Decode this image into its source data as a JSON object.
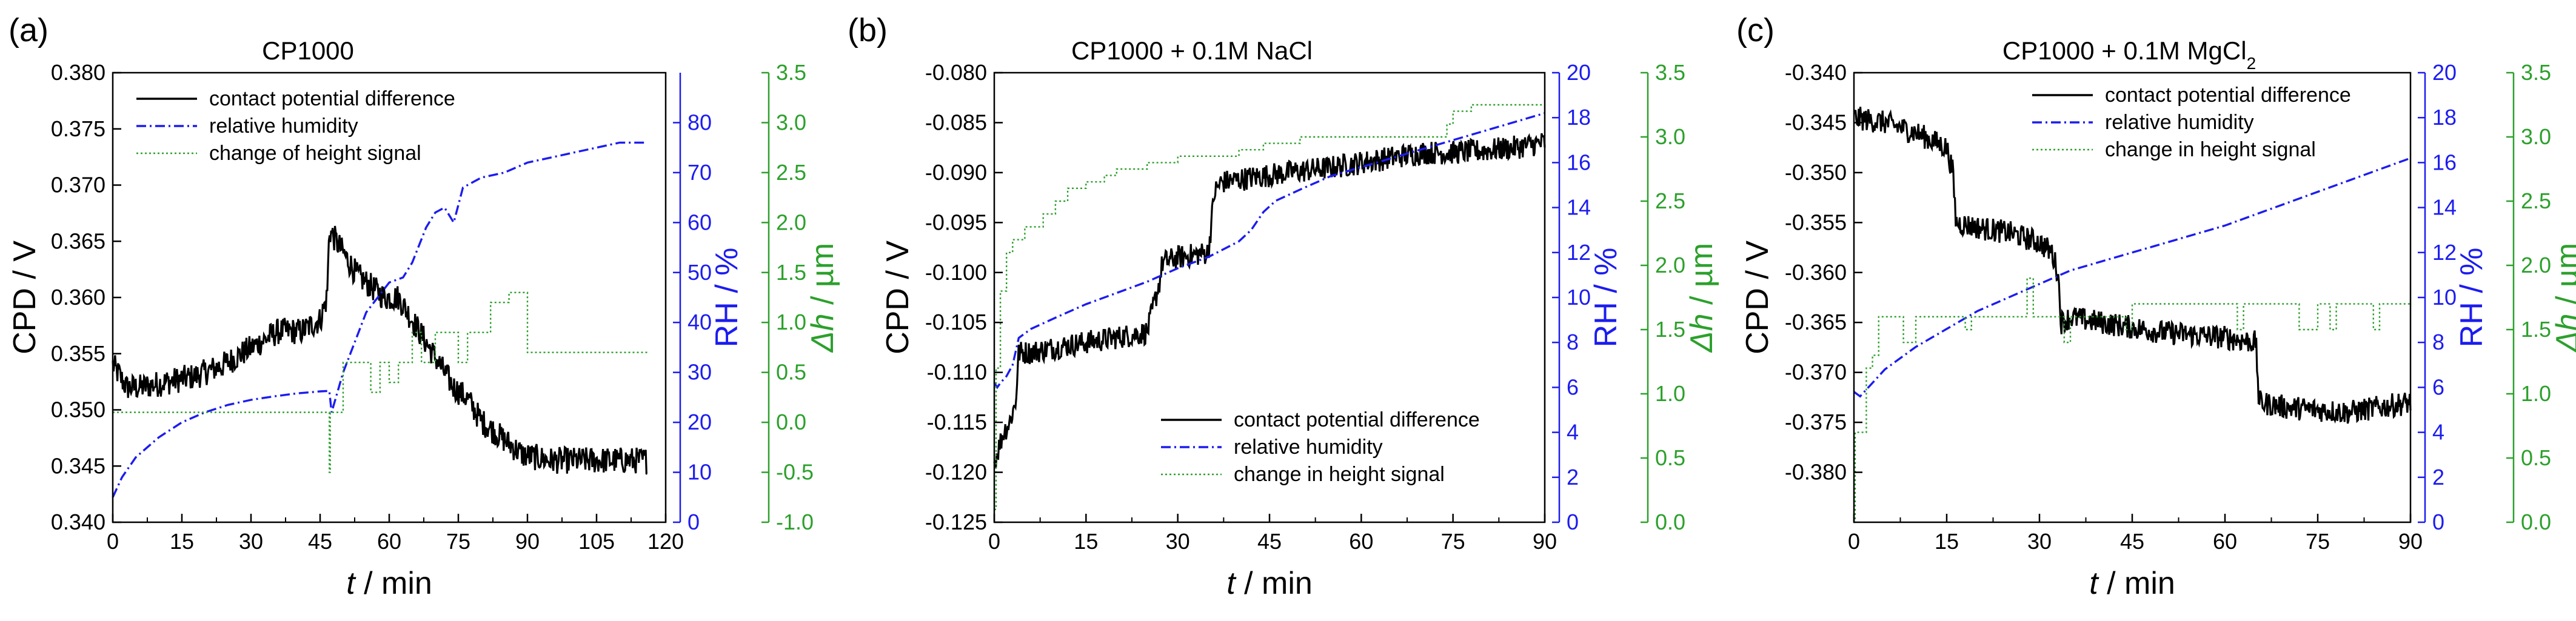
{
  "figure": {
    "colors": {
      "cpd": "#000000",
      "rh": "#1c1cf0",
      "dh": "#2ca02c"
    },
    "panels": [
      {
        "tag": "(a)",
        "title": "CP1000",
        "title_sub": "",
        "title_tail": "",
        "legend": {
          "position": "top-left",
          "cpd": "contact potential difference",
          "rh": "relative humidity",
          "dh": "change of height signal"
        }
      },
      {
        "tag": "(b)",
        "title": "CP1000 + 0.1M NaCl",
        "title_sub": "",
        "title_tail": "",
        "legend": {
          "position": "bottom-right",
          "cpd": "contact potential difference",
          "rh": "relative humidity",
          "dh": "change in height signal"
        }
      },
      {
        "tag": "(c)",
        "title": "CP1000 + 0.1M MgCl",
        "title_sub": "2",
        "title_tail": "",
        "legend": {
          "position": "top-right",
          "cpd": "contact potential difference",
          "rh": "relative humidity",
          "dh": "change in height signal"
        }
      }
    ]
  },
  "chart_data": [
    {
      "type": "line",
      "title": "CP1000",
      "xlabel_var": "t",
      "xlabel_unit": " / min",
      "y1label": "CPD / V",
      "y2label": "RH / %",
      "y3label_var": "Δh",
      "y3label_unit": " / µm",
      "xlim": [
        0,
        120
      ],
      "xticks": [
        "0",
        "15",
        "30",
        "45",
        "60",
        "75",
        "90",
        "105",
        "120"
      ],
      "y1lim": [
        0.34,
        0.38
      ],
      "y1ticks": [
        "0.340",
        "0.345",
        "0.350",
        "0.355",
        "0.360",
        "0.365",
        "0.370",
        "0.375",
        "0.380"
      ],
      "y2lim": [
        0,
        90
      ],
      "y2ticks": [
        "0",
        "10",
        "20",
        "30",
        "40",
        "50",
        "60",
        "70",
        "80"
      ],
      "y3lim": [
        -1.0,
        3.5
      ],
      "y3ticks": [
        "-1.0",
        "-0.5",
        "0.0",
        "0.5",
        "1.0",
        "1.5",
        "2.0",
        "2.5",
        "3.0",
        "3.5"
      ],
      "series": [
        {
          "name": "contact potential difference",
          "axis": "y1",
          "noise": 0.0012,
          "x": [
            0,
            3,
            6,
            12,
            18,
            24,
            30,
            36,
            41,
            45,
            46.5,
            47,
            48.5,
            50,
            53,
            56,
            59,
            62,
            65,
            68,
            71,
            74,
            77,
            80,
            83,
            86,
            89,
            95,
            100,
            105,
            110,
            116
          ],
          "y": [
            0.354,
            0.352,
            0.352,
            0.3525,
            0.353,
            0.354,
            0.3555,
            0.357,
            0.357,
            0.358,
            0.36,
            0.366,
            0.365,
            0.364,
            0.362,
            0.361,
            0.36,
            0.36,
            0.358,
            0.356,
            0.354,
            0.352,
            0.351,
            0.349,
            0.348,
            0.347,
            0.346,
            0.3455,
            0.3455,
            0.3455,
            0.3455,
            0.3455
          ]
        },
        {
          "name": "relative humidity",
          "axis": "y2",
          "x": [
            0,
            2,
            5,
            10,
            15,
            20,
            25,
            30,
            35,
            40,
            45,
            47,
            47.5,
            50,
            55,
            60,
            63,
            65,
            68,
            70,
            72,
            74,
            76,
            80,
            85,
            90,
            95,
            100,
            105,
            110,
            116
          ],
          "y": [
            5,
            9,
            13,
            17,
            20,
            22,
            23.5,
            24.5,
            25.2,
            25.8,
            26.2,
            26.3,
            22,
            30,
            42,
            48,
            49,
            52,
            59,
            62,
            63,
            60,
            67,
            69,
            70,
            72,
            73,
            74,
            75,
            76,
            76
          ]
        },
        {
          "name": "change of height signal",
          "axis": "y3",
          "step": true,
          "x": [
            0,
            2,
            5,
            10,
            20,
            30,
            40,
            47,
            47.2,
            48,
            50,
            53,
            56,
            58,
            60,
            62,
            64,
            65,
            67,
            70,
            72,
            75,
            77,
            80,
            82,
            85,
            86,
            90,
            95,
            100,
            105,
            110,
            115,
            116
          ],
          "y": [
            0.1,
            0.1,
            0.1,
            0.1,
            0.1,
            0.1,
            0.1,
            -0.5,
            0.1,
            0.1,
            0.6,
            0.6,
            0.3,
            0.6,
            0.4,
            0.6,
            0.6,
            0.9,
            0.6,
            0.9,
            0.9,
            0.6,
            0.9,
            0.9,
            1.2,
            1.2,
            1.3,
            0.7,
            0.7,
            0.7,
            0.7,
            0.7,
            0.7,
            0.7
          ]
        }
      ]
    },
    {
      "type": "line",
      "title": "CP1000 + 0.1M NaCl",
      "xlabel_var": "t",
      "xlabel_unit": " / min",
      "y1label": "CPD / V",
      "y2label": "RH / %",
      "y3label_var": "Δh",
      "y3label_unit": " / µm",
      "xlim": [
        0,
        90
      ],
      "xticks": [
        "0",
        "15",
        "30",
        "45",
        "60",
        "75",
        "90"
      ],
      "y1lim": [
        -0.125,
        -0.08
      ],
      "y1ticks": [
        "-0.125",
        "-0.120",
        "-0.115",
        "-0.110",
        "-0.105",
        "-0.100",
        "-0.095",
        "-0.090",
        "-0.085",
        "-0.080"
      ],
      "y2lim": [
        0,
        20
      ],
      "y2ticks": [
        "0",
        "2",
        "4",
        "6",
        "8",
        "10",
        "12",
        "14",
        "16",
        "18",
        "20"
      ],
      "y3lim": [
        0.0,
        3.5
      ],
      "y3ticks": [
        "0.0",
        "0.5",
        "1.0",
        "1.5",
        "2.0",
        "2.5",
        "3.0",
        "3.5"
      ],
      "series": [
        {
          "name": "contact potential difference",
          "axis": "y1",
          "noise": 0.0012,
          "x": [
            0,
            0.5,
            1.5,
            2.5,
            3.5,
            4,
            6,
            10,
            15,
            20,
            25,
            27,
            27.5,
            30,
            35,
            36,
            37,
            42,
            48,
            55,
            60,
            65,
            70,
            75,
            80,
            85,
            90
          ],
          "y": [
            -0.119,
            -0.118,
            -0.116,
            -0.115,
            -0.113,
            -0.108,
            -0.108,
            -0.1075,
            -0.107,
            -0.1065,
            -0.106,
            -0.101,
            -0.099,
            -0.0985,
            -0.098,
            -0.092,
            -0.091,
            -0.0905,
            -0.09,
            -0.0895,
            -0.089,
            -0.0885,
            -0.088,
            -0.088,
            -0.0878,
            -0.0875,
            -0.087
          ]
        },
        {
          "name": "relative humidity",
          "axis": "y2",
          "x": [
            0,
            0.5,
            1,
            2,
            3,
            4,
            6,
            10,
            15,
            20,
            25,
            30,
            35,
            40,
            42,
            44,
            46,
            50,
            55,
            60,
            65,
            70,
            75,
            80,
            85,
            90
          ],
          "y": [
            6.2,
            6,
            6.2,
            6.5,
            7,
            8.2,
            8.6,
            9.1,
            9.7,
            10.2,
            10.7,
            11.3,
            11.8,
            12.5,
            13,
            13.8,
            14.3,
            14.8,
            15.4,
            15.8,
            16.2,
            16.6,
            17,
            17.4,
            17.8,
            18.2
          ]
        },
        {
          "name": "change in height signal",
          "axis": "y3",
          "step": true,
          "x": [
            0,
            0.3,
            1,
            2,
            3,
            5,
            8,
            10,
            12,
            15,
            18,
            20,
            25,
            30,
            40,
            44,
            46,
            50,
            60,
            70,
            74,
            75,
            78,
            80,
            90
          ],
          "y": [
            0.1,
            1.2,
            1.8,
            2.1,
            2.2,
            2.3,
            2.4,
            2.5,
            2.6,
            2.65,
            2.7,
            2.75,
            2.8,
            2.85,
            2.9,
            2.95,
            2.95,
            3.0,
            3.0,
            3.0,
            3.1,
            3.2,
            3.25,
            3.25,
            3.25
          ]
        }
      ]
    },
    {
      "type": "line",
      "title": "CP1000 + 0.1M MgCl2",
      "xlabel_var": "t",
      "xlabel_unit": " / min",
      "y1label": "CPD / V",
      "y2label": "RH / %",
      "y3label_var": "Δh",
      "y3label_unit": " / µm",
      "xlim": [
        0,
        90
      ],
      "xticks": [
        "0",
        "15",
        "30",
        "45",
        "60",
        "75",
        "90"
      ],
      "y1lim": [
        -0.385,
        -0.34
      ],
      "y1ticks": [
        "-0.380",
        "-0.375",
        "-0.370",
        "-0.365",
        "-0.360",
        "-0.355",
        "-0.350",
        "-0.345",
        "-0.340"
      ],
      "y2lim": [
        0,
        20
      ],
      "y2ticks": [
        "0",
        "2",
        "4",
        "6",
        "8",
        "10",
        "12",
        "14",
        "16",
        "18",
        "20"
      ],
      "y3lim": [
        0.0,
        3.5
      ],
      "y3ticks": [
        "0.0",
        "0.5",
        "1.0",
        "1.5",
        "2.0",
        "2.5",
        "3.0",
        "3.5"
      ],
      "series": [
        {
          "name": "contact potential difference",
          "axis": "y1",
          "noise": 0.0012,
          "x": [
            0,
            5,
            10,
            15,
            16,
            16.5,
            20,
            25,
            30,
            32,
            33,
            33.5,
            35,
            40,
            50,
            60,
            65,
            65.5,
            70,
            80,
            90
          ],
          "y": [
            -0.3445,
            -0.345,
            -0.346,
            -0.3475,
            -0.35,
            -0.355,
            -0.3555,
            -0.356,
            -0.357,
            -0.358,
            -0.36,
            -0.365,
            -0.3645,
            -0.365,
            -0.366,
            -0.3665,
            -0.367,
            -0.373,
            -0.3735,
            -0.374,
            -0.373
          ]
        },
        {
          "name": "relative humidity",
          "axis": "y2",
          "x": [
            0,
            1,
            3,
            5,
            10,
            15,
            20,
            25,
            30,
            35,
            40,
            45,
            50,
            55,
            60,
            65,
            70,
            75,
            80,
            85,
            90
          ],
          "y": [
            5.8,
            5.6,
            6.2,
            6.8,
            7.8,
            8.6,
            9.4,
            10,
            10.6,
            11.2,
            11.6,
            12,
            12.4,
            12.8,
            13.2,
            13.7,
            14.2,
            14.7,
            15.2,
            15.7,
            16.2
          ]
        },
        {
          "name": "change in height signal",
          "axis": "y3",
          "step": true,
          "x": [
            0,
            0.2,
            2,
            3,
            4,
            7,
            8,
            10,
            15,
            18,
            19,
            25,
            28,
            29,
            33,
            34,
            35,
            40,
            44,
            45,
            50,
            55,
            60,
            62,
            63,
            65,
            70,
            72,
            75,
            77,
            78,
            82,
            84,
            85,
            88,
            90
          ],
          "y": [
            0.0,
            0.7,
            1.2,
            1.3,
            1.6,
            1.6,
            1.4,
            1.6,
            1.6,
            1.5,
            1.6,
            1.6,
            1.9,
            1.6,
            1.6,
            1.4,
            1.6,
            1.6,
            1.5,
            1.7,
            1.7,
            1.7,
            1.7,
            1.5,
            1.7,
            1.7,
            1.7,
            1.5,
            1.7,
            1.5,
            1.7,
            1.7,
            1.5,
            1.7,
            1.7,
            1.7
          ]
        }
      ]
    }
  ]
}
